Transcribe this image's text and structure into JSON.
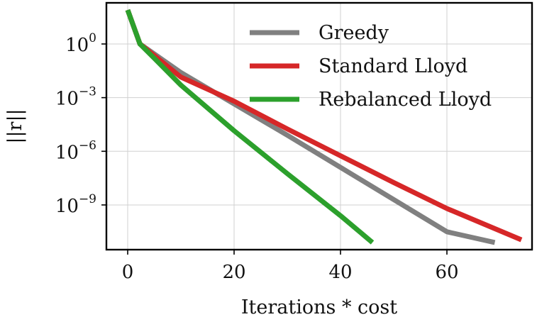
{
  "chart_data": {
    "type": "line",
    "xlabel": "Iterations * cost",
    "ylabel": "||r||",
    "xlim": [
      -4,
      76
    ],
    "ylim_log10": [
      -11.5,
      2.3
    ],
    "yscale": "log",
    "grid": true,
    "legend_position": "top-right",
    "x_ticks": [
      {
        "value": 0,
        "label": "0"
      },
      {
        "value": 20,
        "label": "20"
      },
      {
        "value": 40,
        "label": "40"
      },
      {
        "value": 60,
        "label": "60"
      }
    ],
    "y_ticks": [
      {
        "exp": 0,
        "base": "10",
        "power": "0"
      },
      {
        "exp": -3,
        "base": "10",
        "power": "−3"
      },
      {
        "exp": -6,
        "base": "10",
        "power": "−6"
      },
      {
        "exp": -9,
        "base": "10",
        "power": "−9"
      }
    ],
    "series": [
      {
        "name": "Greedy",
        "color": "#808080",
        "x": [
          0,
          2.3,
          10,
          20,
          30,
          40,
          50,
          60,
          69
        ],
        "log10_y": [
          1.9,
          0.0,
          -1.6,
          -3.35,
          -5.1,
          -6.9,
          -8.7,
          -10.5,
          -11.1
        ]
      },
      {
        "name": "Standard Lloyd",
        "color": "#d62728",
        "x": [
          0,
          2.3,
          10,
          20,
          30,
          40,
          50,
          60,
          74
        ],
        "log10_y": [
          1.9,
          0.0,
          -1.85,
          -3.2,
          -4.75,
          -6.25,
          -7.75,
          -9.2,
          -10.95
        ]
      },
      {
        "name": "Rebalanced Lloyd",
        "color": "#2ca02c",
        "x": [
          0,
          2.3,
          5,
          10,
          20,
          30,
          40,
          46
        ],
        "log10_y": [
          1.9,
          0.0,
          -0.8,
          -2.3,
          -4.85,
          -7.25,
          -9.6,
          -11.1
        ]
      }
    ]
  }
}
